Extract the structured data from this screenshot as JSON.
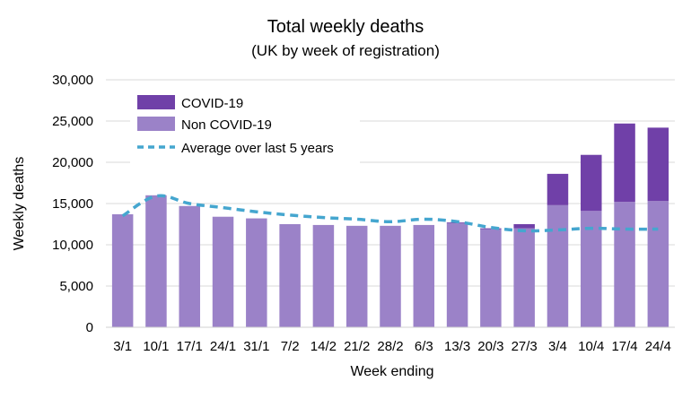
{
  "chart_data": {
    "type": "bar",
    "title": "Total weekly deaths",
    "subtitle": "(UK by week of registration)",
    "xlabel": "Week ending",
    "ylabel": "Weekly deaths",
    "ylim": [
      0,
      30000
    ],
    "yticks": [
      0,
      5000,
      10000,
      15000,
      20000,
      25000,
      30000
    ],
    "ytick_labels": [
      "0",
      "5,000",
      "10,000",
      "15,000",
      "20,000",
      "25,000",
      "30,000"
    ],
    "categories": [
      "3/1",
      "10/1",
      "17/1",
      "24/1",
      "31/1",
      "7/2",
      "14/2",
      "21/2",
      "28/2",
      "6/3",
      "13/3",
      "20/3",
      "27/3",
      "3/4",
      "10/4",
      "17/4",
      "24/4"
    ],
    "stacked": true,
    "series": [
      {
        "name": "Non COVID-19",
        "kind": "bar",
        "color": "#9b82c8",
        "values": [
          13700,
          16000,
          14700,
          13400,
          13200,
          12500,
          12400,
          12300,
          12300,
          12400,
          12600,
          11900,
          12000,
          14800,
          14100,
          15200,
          15300
        ]
      },
      {
        "name": "COVID-19",
        "kind": "bar",
        "color": "#7040a8",
        "values": [
          0,
          0,
          0,
          0,
          0,
          0,
          0,
          0,
          0,
          0,
          100,
          100,
          500,
          3800,
          6800,
          9500,
          8900
        ]
      },
      {
        "name": "Average over last 5 years",
        "kind": "line",
        "style": "dashed",
        "color": "#45a6cf",
        "values": [
          13500,
          15900,
          15000,
          14500,
          14000,
          13600,
          13300,
          13100,
          12800,
          13100,
          12800,
          12100,
          11700,
          11800,
          12000,
          11900,
          11900
        ]
      }
    ],
    "legend_position": "top-left",
    "grid": "horizontal"
  }
}
